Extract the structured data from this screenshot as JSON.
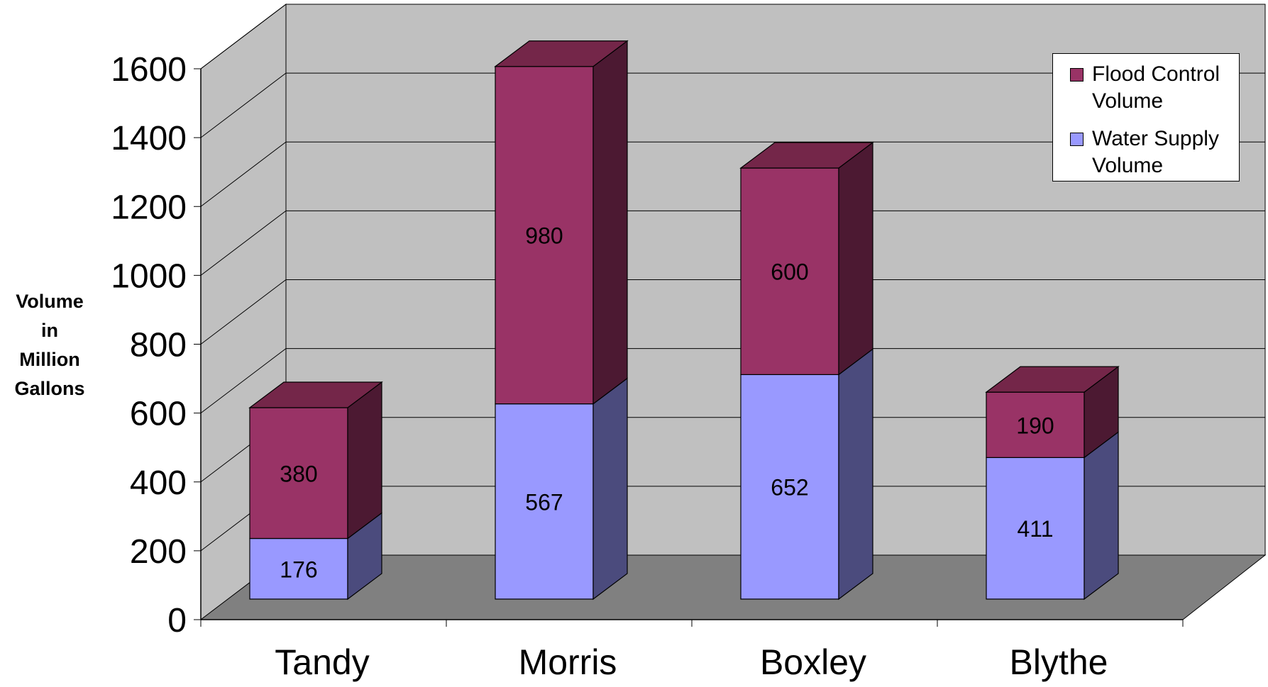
{
  "chart_data": {
    "type": "bar",
    "stacked": true,
    "three_d": true,
    "categories": [
      "Tandy",
      "Morris",
      "Boxley",
      "Blythe"
    ],
    "series": [
      {
        "name": "Water Supply Volume",
        "values": [
          176,
          567,
          652,
          411
        ],
        "color": "#9999ff",
        "side_color": "#4b4b7d"
      },
      {
        "name": "Flood Control Volume",
        "values": [
          380,
          980,
          600,
          190
        ],
        "color": "#993366",
        "top_color": "#742649",
        "side_color": "#4c1932"
      }
    ],
    "title": "",
    "xlabel": "",
    "ylabel": [
      "Volume",
      "in",
      "Million",
      "Gallons"
    ],
    "ylim": [
      0,
      1600
    ],
    "yticks": [
      "0",
      "200",
      "400",
      "600",
      "800",
      "1000",
      "1200",
      "1400",
      "1600"
    ],
    "grid": true,
    "legend": {
      "placement": "top-right",
      "entries": [
        {
          "lines": [
            "Flood Control",
            "Volume"
          ],
          "color": "#993366"
        },
        {
          "lines": [
            "Water Supply",
            "Volume"
          ],
          "color": "#9999ff"
        }
      ]
    },
    "data_labels": true,
    "colors": {
      "wall": "#c0c0c0",
      "floor": "#808080"
    }
  }
}
